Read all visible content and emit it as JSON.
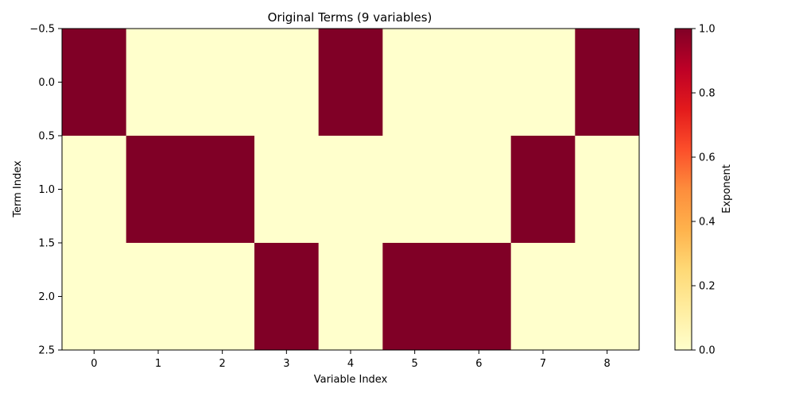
{
  "chart_data": {
    "type": "heatmap",
    "title": "Original Terms (9 variables)",
    "xlabel": "Variable Index",
    "ylabel": "Term Index",
    "x_categories": [
      "0",
      "1",
      "2",
      "3",
      "4",
      "5",
      "6",
      "7",
      "8"
    ],
    "y_range": [
      -0.5,
      2.5
    ],
    "y_ticks": [
      -0.5,
      0.0,
      0.5,
      1.0,
      1.5,
      2.0,
      2.5
    ],
    "y_tick_labels": [
      "−0.5",
      "0.0",
      "0.5",
      "1.0",
      "1.5",
      "2.0",
      "2.5"
    ],
    "values": [
      [
        1,
        0,
        0,
        0,
        1,
        0,
        0,
        0,
        1
      ],
      [
        0,
        1,
        1,
        0,
        0,
        0,
        0,
        1,
        0
      ],
      [
        0,
        0,
        0,
        1,
        0,
        1,
        1,
        0,
        0
      ]
    ],
    "colorbar": {
      "label": "Exponent",
      "range": [
        0.0,
        1.0
      ],
      "ticks": [
        0.0,
        0.2,
        0.4,
        0.6,
        0.8,
        1.0
      ],
      "tick_labels": [
        "0.0",
        "0.2",
        "0.4",
        "0.6",
        "0.8",
        "1.0"
      ],
      "colormap": "YlOrRd",
      "low_color": "#ffffcc",
      "high_color": "#800026"
    }
  }
}
